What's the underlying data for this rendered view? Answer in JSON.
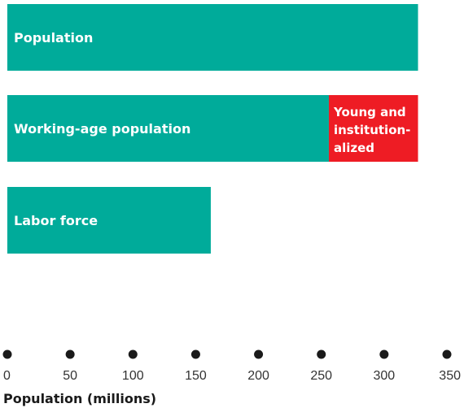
{
  "chart_data": {
    "type": "bar",
    "orientation": "horizontal",
    "stacked": true,
    "categories": [
      "Population",
      "Working-age population",
      "Labor force"
    ],
    "series": [
      {
        "values": [
          327,
          256,
          162
        ],
        "segment_labels": [
          "Population",
          "Working-age population",
          "Labor force"
        ]
      },
      {
        "values": [
          0,
          71,
          0
        ],
        "segment_labels": [
          "",
          "Young and institution-alized",
          ""
        ]
      }
    ],
    "xlabel": "Population (millions)",
    "ylabel": "",
    "xlim": [
      0,
      350
    ],
    "xticks": [
      0,
      50,
      100,
      150,
      200,
      250,
      300,
      350
    ],
    "tick_labels": [
      "0",
      "50",
      "100",
      "150",
      "200",
      "250",
      "300",
      "350"
    ],
    "tick_marker": "dot",
    "grid": false,
    "legend": "none",
    "colors": {
      "main": "#00ab9a",
      "secondary": "#ee1c24",
      "label": "#ffffff",
      "axis": "#1a1a1a"
    }
  }
}
